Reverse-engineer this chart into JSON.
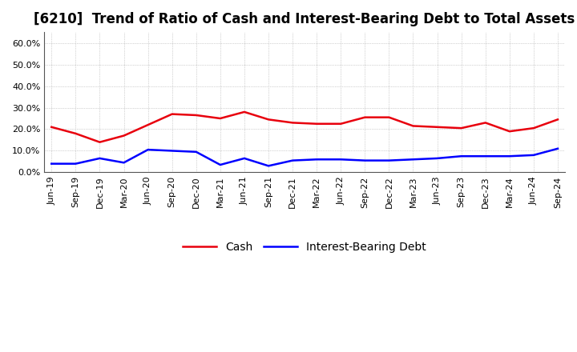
{
  "title": "[6210]  Trend of Ratio of Cash and Interest-Bearing Debt to Total Assets",
  "x_labels": [
    "Jun-19",
    "Sep-19",
    "Dec-19",
    "Mar-20",
    "Jun-20",
    "Sep-20",
    "Dec-20",
    "Mar-21",
    "Jun-21",
    "Sep-21",
    "Dec-21",
    "Mar-22",
    "Jun-22",
    "Sep-22",
    "Dec-22",
    "Mar-23",
    "Jun-23",
    "Sep-23",
    "Dec-23",
    "Mar-24",
    "Jun-24",
    "Sep-24"
  ],
  "cash": [
    21.0,
    18.0,
    14.0,
    17.0,
    22.0,
    27.0,
    26.5,
    25.0,
    28.0,
    24.5,
    23.0,
    22.5,
    22.5,
    25.5,
    25.5,
    21.5,
    21.0,
    20.5,
    23.0,
    19.0,
    20.5,
    24.5
  ],
  "debt": [
    4.0,
    4.0,
    6.5,
    4.5,
    10.5,
    10.0,
    9.5,
    3.5,
    6.5,
    3.0,
    5.5,
    6.0,
    6.0,
    5.5,
    5.5,
    6.0,
    6.5,
    7.5,
    7.5,
    7.5,
    8.0,
    11.0
  ],
  "cash_color": "#e8000d",
  "debt_color": "#0000ff",
  "background_color": "#ffffff",
  "plot_bg_color": "#ffffff",
  "grid_color": "#aaaaaa",
  "ylim": [
    0,
    65
  ],
  "yticks": [
    0,
    10,
    20,
    30,
    40,
    50,
    60
  ],
  "ytick_labels": [
    "0.0%",
    "10.0%",
    "20.0%",
    "30.0%",
    "40.0%",
    "50.0%",
    "60.0%"
  ],
  "legend_cash": "Cash",
  "legend_debt": "Interest-Bearing Debt",
  "title_fontsize": 12,
  "tick_fontsize": 8,
  "legend_fontsize": 10,
  "linewidth": 1.8
}
